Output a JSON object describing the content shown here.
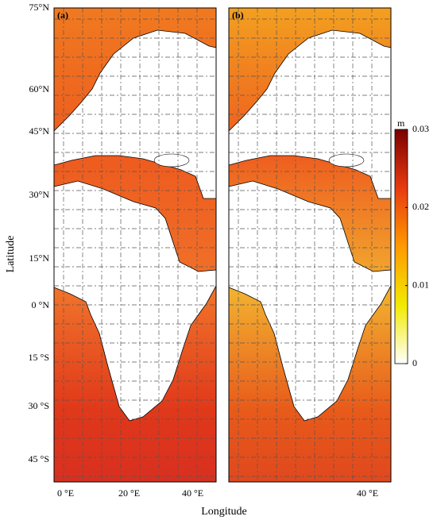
{
  "panels": [
    {
      "label": "(a)",
      "lon_ticks": [
        "0 °E",
        "20 °E",
        "40 °E"
      ]
    },
    {
      "label": "(b)",
      "lon_ticks": [
        "40 °E"
      ]
    }
  ],
  "lat_ticks": [
    "75°N",
    "60°N",
    "45°N",
    "30°N",
    "15°N",
    "0 °N",
    "15 °S",
    "30 °S",
    "45 °S"
  ],
  "y_label": "Latitude",
  "x_label": "Longitude",
  "colorbar": {
    "unit": "m",
    "range": [
      0,
      0.03
    ],
    "ticks": [
      0,
      0.01,
      0.02,
      0.03
    ],
    "colors": [
      "#ffffff",
      "#f2ea00",
      "#ff9a00",
      "#e83a10",
      "#7a0000"
    ]
  }
}
